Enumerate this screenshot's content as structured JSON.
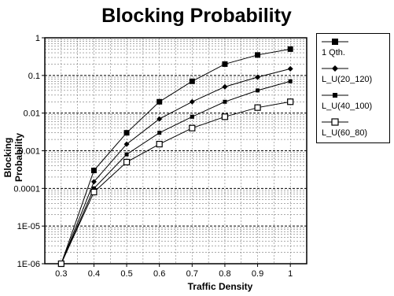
{
  "chart_data": {
    "type": "line",
    "title": "Blocking Probability",
    "xlabel": "Traffic Density",
    "ylabel": "Blocking Probability",
    "x": [
      0.3,
      0.4,
      0.5,
      0.6,
      0.7,
      0.8,
      0.9,
      1.0
    ],
    "x_ticks": [
      "0.3",
      "0.4",
      "0.5",
      "0.6",
      "0.7",
      "0.8",
      "0.9",
      "1"
    ],
    "xlim": [
      0.25,
      1.05
    ],
    "y_scale": "log",
    "ylim": [
      1e-06,
      1
    ],
    "y_ticks": [
      {
        "value": 1,
        "label": "1"
      },
      {
        "value": 0.1,
        "label": "0.1"
      },
      {
        "value": 0.01,
        "label": "0.01"
      },
      {
        "value": 0.001,
        "label": "0.001"
      },
      {
        "value": 0.0001,
        "label": "0.0001"
      },
      {
        "value": 1e-05,
        "label": "1E-05"
      },
      {
        "value": 1e-06,
        "label": "1E-06"
      }
    ],
    "grid": true,
    "legend_position": "right",
    "series": [
      {
        "name": "1 Qth.",
        "marker": "filled-square",
        "values": [
          1e-06,
          0.0003,
          0.003,
          0.02,
          0.07,
          0.2,
          0.35,
          0.5
        ]
      },
      {
        "name": "L_U(20_120)",
        "marker": "diamond",
        "values": [
          1e-06,
          0.00015,
          0.0015,
          0.007,
          0.02,
          0.05,
          0.09,
          0.15
        ]
      },
      {
        "name": "L_U(40_100)",
        "marker": "small-square",
        "values": [
          1e-06,
          0.0001,
          0.0008,
          0.003,
          0.008,
          0.02,
          0.04,
          0.07
        ]
      },
      {
        "name": "L_U(60_80)",
        "marker": "open-square",
        "values": [
          1e-06,
          8e-05,
          0.0005,
          0.0015,
          0.004,
          0.008,
          0.014,
          0.02
        ]
      }
    ]
  }
}
